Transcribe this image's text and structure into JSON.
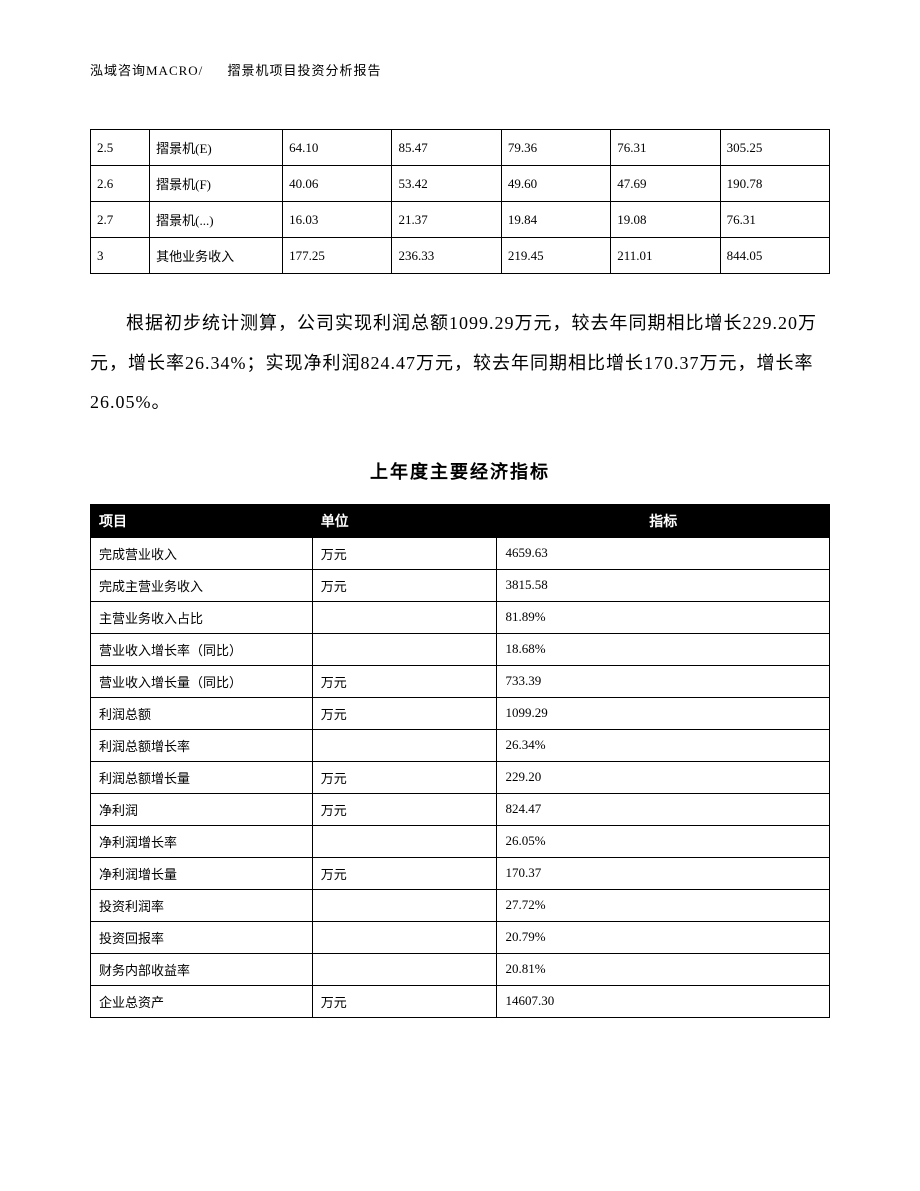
{
  "header": {
    "company": "泓域咨询MACRO/",
    "title": "摺景机项目投资分析报告"
  },
  "top_table": {
    "col_widths": [
      "8%",
      "18%",
      "14.8%",
      "14.8%",
      "14.8%",
      "14.8%",
      "14.8%"
    ],
    "rows": [
      [
        "2.5",
        "摺景机(E)",
        "64.10",
        "85.47",
        "79.36",
        "76.31",
        "305.25"
      ],
      [
        "2.6",
        "摺景机(F)",
        "40.06",
        "53.42",
        "49.60",
        "47.69",
        "190.78"
      ],
      [
        "2.7",
        "摺景机(...)",
        "16.03",
        "21.37",
        "19.84",
        "19.08",
        "76.31"
      ],
      [
        "3",
        "其他业务收入",
        "177.25",
        "236.33",
        "219.45",
        "211.01",
        "844.05"
      ]
    ]
  },
  "paragraph": "根据初步统计测算，公司实现利润总额1099.29万元，较去年同期相比增长229.20万元，增长率26.34%；实现净利润824.47万元，较去年同期相比增长170.37万元，增长率26.05%。",
  "section_title": "上年度主要经济指标",
  "metrics_table": {
    "headers": [
      "项目",
      "单位",
      "指标"
    ],
    "rows": [
      [
        "完成营业收入",
        "万元",
        "4659.63"
      ],
      [
        "完成主营业务收入",
        "万元",
        "3815.58"
      ],
      [
        "主营业务收入占比",
        "",
        "81.89%"
      ],
      [
        "营业收入增长率（同比）",
        "",
        "18.68%"
      ],
      [
        "营业收入增长量（同比）",
        "万元",
        "733.39"
      ],
      [
        "利润总额",
        "万元",
        "1099.29"
      ],
      [
        "利润总额增长率",
        "",
        "26.34%"
      ],
      [
        "利润总额增长量",
        "万元",
        "229.20"
      ],
      [
        "净利润",
        "万元",
        "824.47"
      ],
      [
        "净利润增长率",
        "",
        "26.05%"
      ],
      [
        "净利润增长量",
        "万元",
        "170.37"
      ],
      [
        "投资利润率",
        "",
        "27.72%"
      ],
      [
        "投资回报率",
        "",
        "20.79%"
      ],
      [
        "财务内部收益率",
        "",
        "20.81%"
      ],
      [
        "企业总资产",
        "万元",
        "14607.30"
      ]
    ]
  }
}
